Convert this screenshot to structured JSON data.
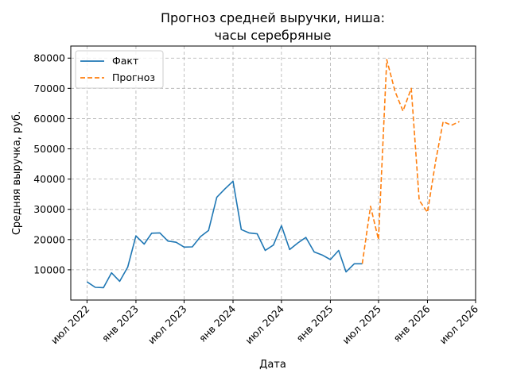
{
  "chart_data": {
    "type": "line",
    "title_lines": [
      "Прогноз средней выручки, ниша:",
      "часы серебряные"
    ],
    "xlabel": "Дата",
    "ylabel": "Средняя выручка, руб.",
    "x_ticks": [
      {
        "date": "2022-07-01",
        "label": "июл 2022"
      },
      {
        "date": "2023-01-01",
        "label": "янв 2023"
      },
      {
        "date": "2023-07-01",
        "label": "июл 2023"
      },
      {
        "date": "2024-01-01",
        "label": "янв 2024"
      },
      {
        "date": "2024-07-01",
        "label": "июл 2024"
      },
      {
        "date": "2025-01-01",
        "label": "янв 2025"
      },
      {
        "date": "2025-07-01",
        "label": "июл 2025"
      },
      {
        "date": "2026-01-01",
        "label": "янв 2026"
      },
      {
        "date": "2026-07-01",
        "label": "июл 2026"
      }
    ],
    "y_ticks": [
      10000,
      20000,
      30000,
      40000,
      50000,
      60000,
      70000,
      80000
    ],
    "xlim": [
      "2022-05-01",
      "2026-07-01"
    ],
    "ylim": [
      0,
      84000
    ],
    "grid": true,
    "legend_position": "top-left",
    "series": [
      {
        "name": "Факт",
        "color": "#1f77b4",
        "dash": "solid",
        "x": [
          "2022-07-01",
          "2022-08-01",
          "2022-09-01",
          "2022-10-01",
          "2022-11-01",
          "2022-12-01",
          "2023-01-01",
          "2023-02-01",
          "2023-03-01",
          "2023-04-01",
          "2023-05-01",
          "2023-06-01",
          "2023-07-01",
          "2023-08-01",
          "2023-09-01",
          "2023-10-01",
          "2023-11-01",
          "2023-12-01",
          "2024-01-01",
          "2024-02-01",
          "2024-03-01",
          "2024-04-01",
          "2024-05-01",
          "2024-06-01",
          "2024-07-01",
          "2024-08-01",
          "2024-09-01",
          "2024-10-01",
          "2024-11-01",
          "2024-12-01",
          "2025-01-01",
          "2025-02-01",
          "2025-03-01",
          "2025-04-01",
          "2025-05-01"
        ],
        "y": [
          6000,
          4200,
          4100,
          9000,
          6200,
          10900,
          21200,
          18500,
          22100,
          22200,
          19500,
          19100,
          17500,
          17600,
          21000,
          23000,
          34000,
          36700,
          39300,
          23300,
          22200,
          21900,
          16400,
          18200,
          24600,
          16700,
          18900,
          20700,
          15900,
          14900,
          13400,
          16400,
          9300,
          12000,
          12000
        ]
      },
      {
        "name": "Прогноз",
        "color": "#ff7f0e",
        "dash": "dashed",
        "x": [
          "2025-05-01",
          "2025-06-01",
          "2025-07-01",
          "2025-08-01",
          "2025-09-01",
          "2025-10-01",
          "2025-11-01",
          "2025-12-01",
          "2026-01-01",
          "2026-02-01",
          "2026-03-01",
          "2026-04-01",
          "2026-05-01"
        ],
        "y": [
          12000,
          31000,
          20000,
          79500,
          69000,
          62500,
          70000,
          33000,
          29000,
          46000,
          59000,
          57800,
          59000
        ]
      }
    ]
  }
}
